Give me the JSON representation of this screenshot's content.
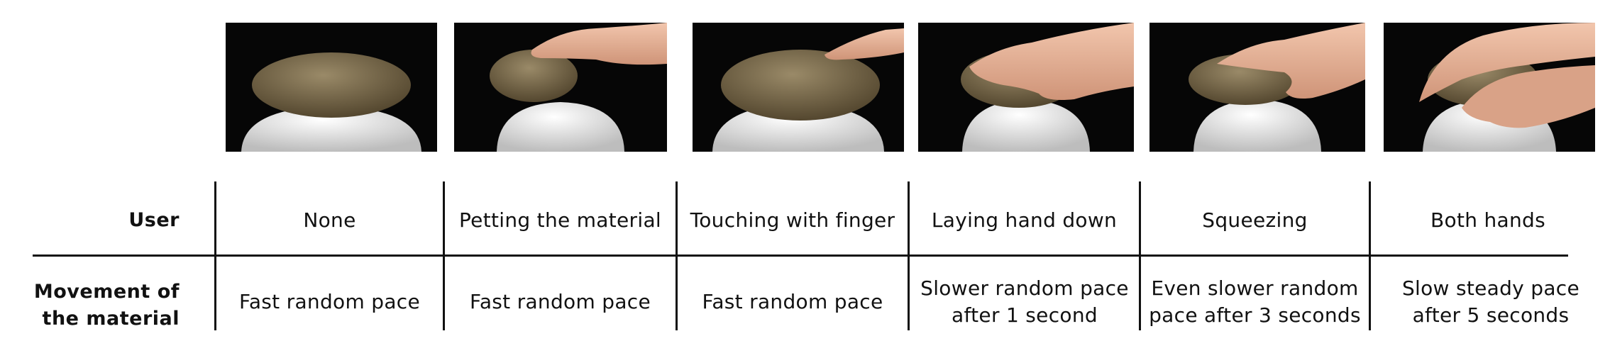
{
  "row_labels": {
    "user": "User",
    "movement": "Movement of the material"
  },
  "columns": [
    {
      "image": "felt-ball-no-hand",
      "user": "None",
      "movement": "Fast random pace"
    },
    {
      "image": "felt-ball-petting",
      "user": "Petting the material",
      "movement": "Fast random pace"
    },
    {
      "image": "felt-ball-finger-touch",
      "user": "Touching with finger",
      "movement": "Fast random pace"
    },
    {
      "image": "felt-ball-hand-laid",
      "user": "Laying hand down",
      "movement": "Slower random pace after 1 second"
    },
    {
      "image": "felt-ball-squeezed",
      "user": "Squeezing",
      "movement": "Even slower random pace after 3 seconds"
    },
    {
      "image": "felt-ball-both-hands",
      "user": "Both hands",
      "movement": "Slow steady pace after 5 seconds"
    }
  ],
  "colors": {
    "photo_background": "#060606",
    "felt": "#7a6a4c",
    "vase": "#e9e9e9",
    "skin": "#e8b59a",
    "rule_line": "#111111"
  }
}
